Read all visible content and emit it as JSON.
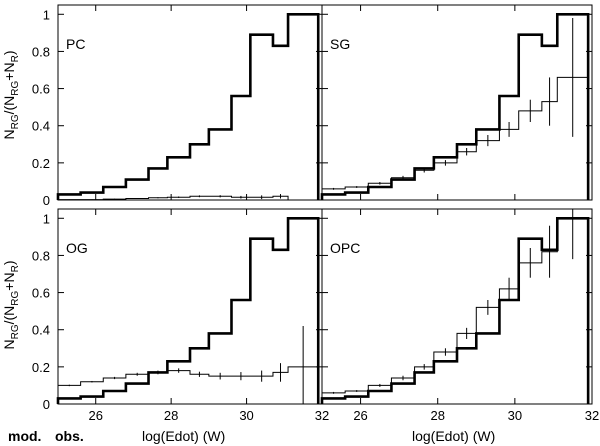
{
  "chart_data": {
    "type": "step",
    "xlim": [
      25,
      32
    ],
    "ylim": [
      0,
      1.05
    ],
    "x_ticks": [
      26,
      28,
      30,
      32
    ],
    "y_ticks": [
      0,
      0.2,
      0.4,
      0.6,
      0.8,
      1
    ],
    "x_tick_labels": [
      "26",
      "28",
      "30",
      "32"
    ],
    "y_tick_labels": [
      "0",
      "0.2",
      "0.4",
      "0.6",
      "0.8",
      "1"
    ],
    "xlabel": "log(Edot)  (W)",
    "ylabel": "N",
    "ylabel_sub": "RG",
    "ylabel_mid": "/(N",
    "ylabel_mid_sub": "RG",
    "ylabel_plus": "+N",
    "ylabel_plus_sub": "R",
    "ylabel_end": ")",
    "bin_edges": [
      25,
      25.6,
      26.2,
      26.8,
      27.4,
      27.9,
      28.5,
      29,
      29.6,
      30.1,
      30.7,
      31.1,
      31.9
    ],
    "footer_left_1": "mod.",
    "footer_left_2": "obs.",
    "panels": [
      {
        "label": "PC",
        "series": [
          {
            "name": "model",
            "values": [
              0.03,
              0.04,
              0.07,
              0.11,
              0.17,
              0.23,
              0.3,
              0.38,
              0.56,
              0.89,
              0.83,
              1.0
            ]
          },
          {
            "name": "observed",
            "values": [
              0.002,
              0.002,
              0.005,
              0.008,
              0.012,
              0.015,
              0.02,
              0.02,
              0.015,
              0.015,
              0.02,
              0.0
            ]
          },
          {
            "name": "observed_err",
            "values": [
              0.001,
              0.001,
              0.002,
              0.002,
              0.003,
              0.004,
              0.005,
              0.006,
              0.007,
              0.01,
              0.012,
              0.0
            ]
          }
        ]
      },
      {
        "label": "SG",
        "series": [
          {
            "name": "model",
            "values": [
              0.03,
              0.04,
              0.07,
              0.11,
              0.17,
              0.23,
              0.3,
              0.38,
              0.56,
              0.89,
              0.83,
              1.0
            ]
          },
          {
            "name": "observed",
            "values": [
              0.06,
              0.07,
              0.09,
              0.12,
              0.16,
              0.2,
              0.26,
              0.32,
              0.38,
              0.48,
              0.53,
              0.66
            ]
          },
          {
            "name": "observed_err",
            "values": [
              0.005,
              0.005,
              0.007,
              0.01,
              0.012,
              0.015,
              0.02,
              0.03,
              0.04,
              0.06,
              0.13,
              0.32
            ]
          }
        ]
      },
      {
        "label": "OG",
        "series": [
          {
            "name": "model",
            "values": [
              0.03,
              0.04,
              0.07,
              0.11,
              0.17,
              0.23,
              0.3,
              0.38,
              0.56,
              0.89,
              0.83,
              1.0
            ]
          },
          {
            "name": "observed",
            "values": [
              0.1,
              0.12,
              0.14,
              0.16,
              0.17,
              0.18,
              0.16,
              0.15,
              0.15,
              0.15,
              0.17,
              0.2
            ]
          },
          {
            "name": "observed_err",
            "values": [
              0.004,
              0.004,
              0.006,
              0.008,
              0.01,
              0.012,
              0.014,
              0.018,
              0.022,
              0.03,
              0.05,
              0.22
            ]
          }
        ]
      },
      {
        "label": "OPC",
        "series": [
          {
            "name": "model",
            "values": [
              0.03,
              0.04,
              0.07,
              0.11,
              0.17,
              0.23,
              0.3,
              0.38,
              0.56,
              0.89,
              0.83,
              1.0
            ]
          },
          {
            "name": "observed",
            "values": [
              0.06,
              0.07,
              0.1,
              0.14,
              0.2,
              0.28,
              0.38,
              0.52,
              0.62,
              0.76,
              0.82,
              1.0
            ]
          },
          {
            "name": "observed_err",
            "values": [
              0.005,
              0.005,
              0.008,
              0.012,
              0.015,
              0.02,
              0.03,
              0.04,
              0.06,
              0.08,
              0.14,
              0.22
            ]
          }
        ]
      }
    ]
  }
}
